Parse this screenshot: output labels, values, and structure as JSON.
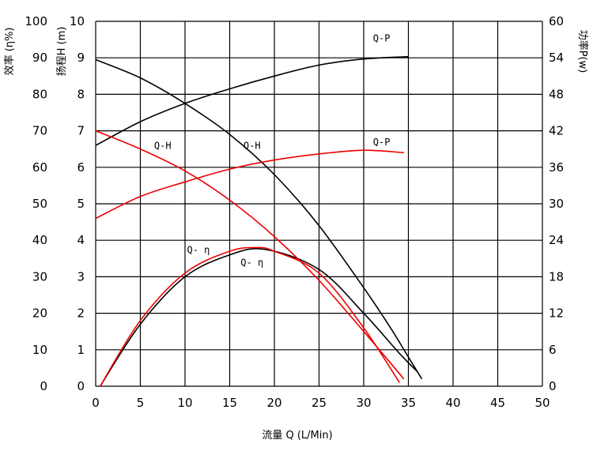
{
  "chart_data": {
    "type": "line",
    "xlabel": "流量 Q (L/Min)",
    "ylabel_left_efficiency": "效率 (η%)",
    "ylabel_left_head": "扬程H (m)",
    "ylabel_right": "功率P(w)",
    "xlim": [
      0,
      50
    ],
    "xticks": [
      "0",
      "5",
      "10",
      "15",
      "20",
      "25",
      "30",
      "35",
      "40",
      "45",
      "50"
    ],
    "ylim_head": [
      0,
      10
    ],
    "yticks_head": [
      "0",
      "1",
      "2",
      "3",
      "4",
      "5",
      "6",
      "7",
      "8",
      "9",
      "10"
    ],
    "ylim_efficiency": [
      0,
      100
    ],
    "yticks_efficiency": [
      "0",
      "10",
      "20",
      "30",
      "40",
      "50",
      "60",
      "70",
      "80",
      "90",
      "100"
    ],
    "ylim_power": [
      0,
      60
    ],
    "yticks_power": [
      "0",
      "6",
      "12",
      "18",
      "24",
      "30",
      "36",
      "42",
      "48",
      "54",
      "60"
    ],
    "grid": true,
    "colors": {
      "black": "#000000",
      "red": "#ee0000",
      "grid": "#000000"
    },
    "curve_labels": [
      "Q-H",
      "Q-P",
      "Q-η"
    ],
    "series": [
      {
        "color": "#000000",
        "axis": "head",
        "x": [
          0,
          5,
          10,
          15,
          20,
          25,
          30,
          33,
          35,
          36.5
        ],
        "y": [
          8.95,
          8.45,
          7.75,
          6.9,
          5.8,
          4.4,
          2.7,
          1.6,
          0.8,
          0.2
        ]
      },
      {
        "color": "#000000",
        "axis": "power",
        "x": [
          0,
          5,
          10,
          15,
          20,
          25,
          30,
          35
        ],
        "y": [
          39.6,
          43.5,
          46.5,
          48.9,
          51.0,
          52.8,
          53.8,
          54.2
        ]
      },
      {
        "color": "#000000",
        "axis": "efficiency",
        "x": [
          0.5,
          5,
          10,
          15,
          19,
          25,
          30,
          34,
          36
        ],
        "y": [
          0,
          17,
          30,
          36,
          37.5,
          32,
          20,
          9,
          4
        ]
      },
      {
        "color": "#ee0000",
        "axis": "head",
        "x": [
          0,
          5,
          10,
          15,
          20,
          25,
          30,
          34.5
        ],
        "y": [
          7.0,
          6.5,
          5.9,
          5.1,
          4.1,
          2.9,
          1.5,
          0.2
        ]
      },
      {
        "color": "#ee0000",
        "axis": "power",
        "x": [
          0,
          5,
          10,
          15,
          20,
          25,
          30,
          34.5
        ],
        "y": [
          27.6,
          31.2,
          33.6,
          35.7,
          37.2,
          38.2,
          38.8,
          38.4
        ]
      },
      {
        "color": "#ee0000",
        "axis": "efficiency",
        "x": [
          0.5,
          5,
          10,
          15,
          18,
          20,
          25,
          30,
          34
        ],
        "y": [
          0,
          18,
          31,
          37,
          38,
          37,
          31,
          16,
          1
        ]
      }
    ],
    "labels": [
      {
        "text": "Q-H",
        "x": 7.5,
        "y": 6.5,
        "color": "#000000"
      },
      {
        "text": "Q-H",
        "x": 17.5,
        "y": 6.5,
        "color": "#000000"
      },
      {
        "text": "Q-P",
        "x": 32,
        "y": 9.45,
        "color": "#000000"
      },
      {
        "text": "Q-P",
        "x": 32,
        "y": 6.6,
        "color": "#000000"
      },
      {
        "text": "Q- η",
        "x": 11.5,
        "y": 3.65,
        "color": "#000000"
      },
      {
        "text": "Q- η",
        "x": 17.5,
        "y": 3.3,
        "color": "#000000"
      }
    ]
  }
}
